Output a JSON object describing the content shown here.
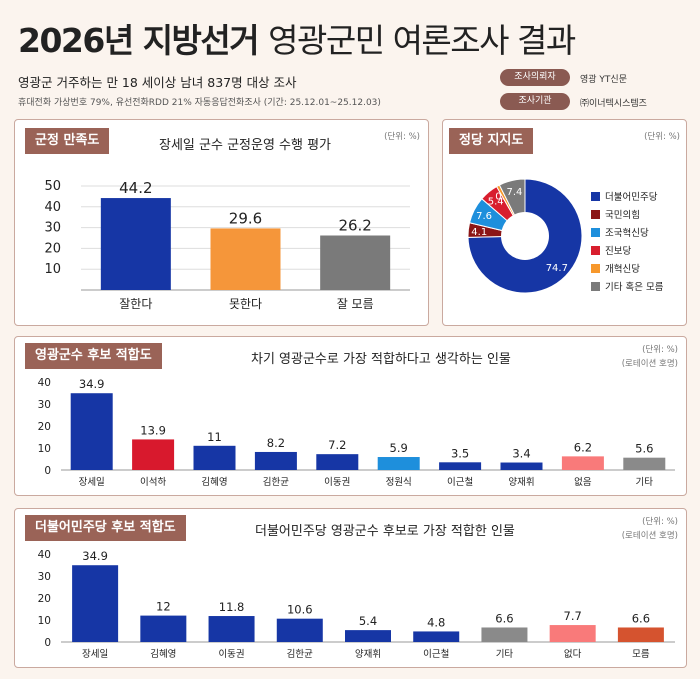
{
  "header": {
    "title_bold": "2026년 지방선거",
    "title_light": "영광군민 여론조사 결과",
    "subtitle": "영광군 거주하는 만 18 세이상 남녀 837명 대상 조사",
    "method": "휴대전화 가상번호 79%, 유선전화RDD 21% 자동응답전화조사 (기간: 25.12.01~25.12.03)",
    "requester_label": "조사의뢰자",
    "requester_value": "영광 YT신문",
    "agency_label": "조사기관",
    "agency_value": "㈜이너텍시스템즈"
  },
  "colors": {
    "blue": "#1636a5",
    "red": "#d8192d",
    "orange": "#f5963a",
    "gray": "#7a7a7a",
    "darkred": "#8b1515",
    "sky": "#1e8fdc",
    "crimson": "#d81e2e",
    "lightorange": "#f7982c",
    "pink": "#f97a7a",
    "lightgray": "#8a8a8a",
    "vermilion": "#d5532f"
  },
  "panels": {
    "satisfaction": {
      "tag": "군정 만족도",
      "title": "장세일 군수 군정운영 수행 평가",
      "unit": "(단위: %)"
    },
    "party": {
      "tag": "정당 지지도",
      "unit": "(단위: %)"
    },
    "county": {
      "tag": "영광군수 후보 적합도",
      "title": "차기 영광군수로 가장 적합하다고 생각하는 인물",
      "unit": "(단위: %)",
      "unit2": "(로테이션 호명)"
    },
    "democratic": {
      "tag": "더불어민주당 후보 적합도",
      "title": "더불어민주당 영광군수 후보로 가장 적합한 인물",
      "unit": "(단위: %)",
      "unit2": "(로테이션 호명)"
    }
  },
  "chart_data": [
    {
      "type": "bar",
      "categories": [
        "잘한다",
        "못한다",
        "잘 모름"
      ],
      "values": [
        44.2,
        29.6,
        26.2
      ],
      "colors": [
        "#1636a5",
        "#f5963a",
        "#7a7a7a"
      ],
      "title": "장세일 군수 군정운영 수행 평가",
      "xlabel": "",
      "ylabel": "",
      "ylim": [
        0,
        50
      ],
      "yticks": [
        10,
        20,
        30,
        40,
        50
      ],
      "grid": true
    },
    {
      "type": "pie",
      "labels": [
        "더불어민주당",
        "국민의힘",
        "조국혁신당",
        "진보당",
        "개혁신당",
        "기타 혹은 모름"
      ],
      "values": [
        74.7,
        4.1,
        7.6,
        5.4,
        0.9,
        7.4
      ],
      "colors": [
        "#1636a5",
        "#8b1515",
        "#1e8fdc",
        "#d81e2e",
        "#f7982c",
        "#7a7a7a"
      ],
      "donut": true,
      "legend": "right"
    },
    {
      "type": "bar",
      "categories": [
        "장세일",
        "이석하",
        "김혜영",
        "김한균",
        "이동권",
        "정원식",
        "이근철",
        "양재휘",
        "없음",
        "기타"
      ],
      "values": [
        34.9,
        13.9,
        11,
        8.2,
        7.2,
        5.9,
        3.5,
        3.4,
        6.2,
        5.6
      ],
      "colors": [
        "#1636a5",
        "#d8192d",
        "#1636a5",
        "#1636a5",
        "#1636a5",
        "#1e8fdc",
        "#1636a5",
        "#1636a5",
        "#f97a7a",
        "#8a8a8a"
      ],
      "title": "차기 영광군수로 가장 적합하다고 생각하는 인물",
      "ylim": [
        0,
        40
      ],
      "yticks": [
        0,
        10,
        20,
        30,
        40
      ]
    },
    {
      "type": "bar",
      "categories": [
        "장세일",
        "김혜영",
        "이동권",
        "김한균",
        "양재휘",
        "이근철",
        "기타",
        "없다",
        "모름"
      ],
      "values": [
        34.9,
        12,
        11.8,
        10.6,
        5.4,
        4.8,
        6.6,
        7.7,
        6.6
      ],
      "colors": [
        "#1636a5",
        "#1636a5",
        "#1636a5",
        "#1636a5",
        "#1636a5",
        "#1636a5",
        "#8a8a8a",
        "#f97a7a",
        "#d5532f"
      ],
      "title": "더불어민주당 영광군수 후보로 가장 적합한 인물",
      "ylim": [
        0,
        40
      ],
      "yticks": [
        0,
        10,
        20,
        30,
        40
      ]
    }
  ]
}
